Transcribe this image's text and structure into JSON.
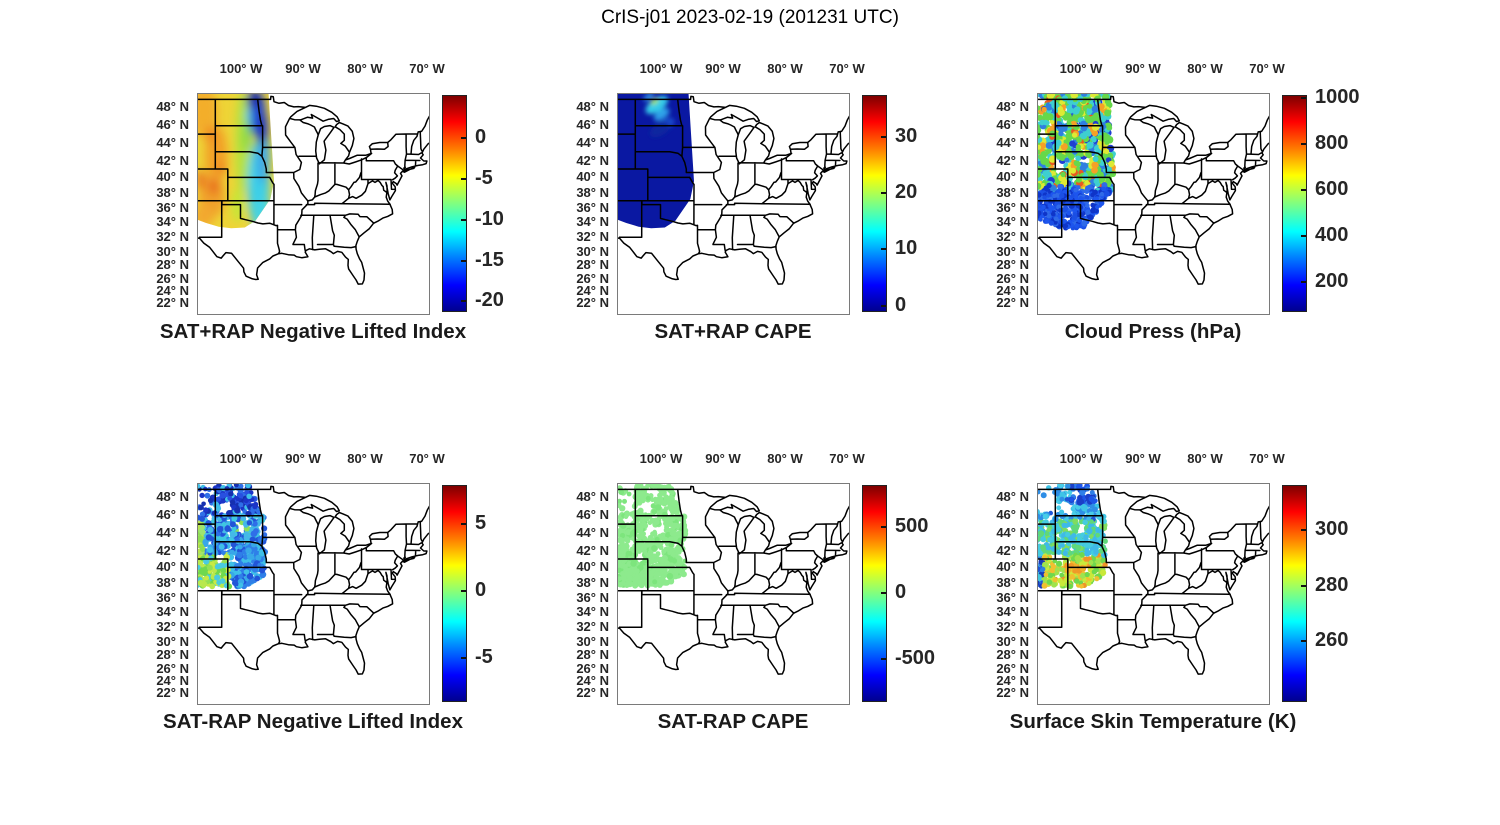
{
  "figure": {
    "title": "CrIS-j01 2023-02-19 (201231 UTC)",
    "background": "#ffffff"
  },
  "shared_axes": {
    "lon_tick_labels": [
      "100° W",
      "90° W",
      "80° W",
      "70° W"
    ],
    "lat_tick_labels": [
      "48° N",
      "46° N",
      "44° N",
      "42° N",
      "40° N",
      "38° N",
      "36° N",
      "34° N",
      "32° N",
      "30° N",
      "28° N",
      "26° N",
      "24° N",
      "22° N"
    ]
  },
  "colormap": {
    "name": "jet",
    "stops": [
      "#00008f",
      "#0000ff",
      "#0080ff",
      "#00ffff",
      "#80ff80",
      "#ffff00",
      "#ff8000",
      "#ff0000",
      "#7f0000"
    ]
  },
  "panels": [
    {
      "id": "sat-plus-rap-nli",
      "row": 1,
      "col": 1,
      "title": "SAT+RAP Negative Lifted Index",
      "colorbar": {
        "min": -21.2,
        "max": 5.2,
        "ticks": [
          {
            "label": "0",
            "value": 0
          },
          {
            "label": "-5",
            "value": -5
          },
          {
            "label": "-10",
            "value": -10
          },
          {
            "label": "-15",
            "value": -15
          },
          {
            "label": "-20",
            "value": -20
          }
        ]
      }
    },
    {
      "id": "sat-plus-rap-cape",
      "row": 1,
      "col": 2,
      "title": "SAT+RAP CAPE",
      "colorbar": {
        "min": -0.9,
        "max": 37.2,
        "ticks": [
          {
            "label": "30",
            "value": 30
          },
          {
            "label": "20",
            "value": 20
          },
          {
            "label": "10",
            "value": 10
          },
          {
            "label": "0",
            "value": 0
          }
        ]
      }
    },
    {
      "id": "cloud-press",
      "row": 1,
      "col": 3,
      "title": "Cloud Press (hPa)",
      "colorbar": {
        "min": 76,
        "max": 1008,
        "ticks": [
          {
            "label": "1000",
            "value": 1000
          },
          {
            "label": "800",
            "value": 800
          },
          {
            "label": "600",
            "value": 600
          },
          {
            "label": "400",
            "value": 400
          },
          {
            "label": "200",
            "value": 200
          }
        ]
      }
    },
    {
      "id": "sat-minus-rap-nli",
      "row": 2,
      "col": 1,
      "title": "SAT-RAP Negative Lifted Index",
      "colorbar": {
        "min": -8.2,
        "max": 7.8,
        "ticks": [
          {
            "label": "5",
            "value": 5
          },
          {
            "label": "0",
            "value": 0
          },
          {
            "label": "-5",
            "value": -5
          }
        ]
      }
    },
    {
      "id": "sat-minus-rap-cape",
      "row": 2,
      "col": 2,
      "title": "SAT-RAP CAPE",
      "colorbar": {
        "min": -815,
        "max": 808,
        "ticks": [
          {
            "label": "500",
            "value": 500
          },
          {
            "label": "0",
            "value": 0
          },
          {
            "label": "-500",
            "value": -500
          }
        ]
      }
    },
    {
      "id": "surface-skin-temp",
      "row": 2,
      "col": 3,
      "title": "Surface Skin Temperature (K)",
      "colorbar": {
        "min": 238.5,
        "max": 316,
        "ticks": [
          {
            "label": "300",
            "value": 300
          },
          {
            "label": "280",
            "value": 280
          },
          {
            "label": "260",
            "value": 260
          }
        ]
      }
    }
  ],
  "chart_data": [
    {
      "type": "heatmap",
      "panel": "SAT+RAP Negative Lifted Index",
      "map_extent": {
        "lon_w": [
          107,
          69.5
        ],
        "lat_n": [
          20,
          50
        ]
      },
      "lon_ticks_w": [
        100,
        90,
        80,
        70
      ],
      "lat_ticks_n": [
        48,
        46,
        44,
        42,
        40,
        38,
        36,
        34,
        32,
        30,
        28,
        26,
        24,
        22
      ],
      "data_swath": {
        "lon_w": [
          107,
          94.7
        ],
        "lat_n": [
          33.2,
          49.8
        ]
      },
      "colorbar_range": [
        -21,
        5
      ],
      "colorbar_ticks": [
        0,
        -5,
        -10,
        -15,
        -20
      ],
      "regions": [
        {
          "where": "lon 107-101W, lat 34-50N",
          "value": "-1 to -6 (yellow/orange, red streaks near 0)"
        },
        {
          "where": "lon 101-98W",
          "value": "-7 to -10 (green transition)"
        },
        {
          "where": "lon 98-95W, lat 34-44N",
          "value": "-10 to -14 (cyan / light blue)"
        },
        {
          "where": "lon 99.5-95.5W, lat 44-50N",
          "value": "-16 to -21 (dark blue)"
        }
      ]
    },
    {
      "type": "heatmap",
      "panel": "SAT+RAP CAPE",
      "map_extent": {
        "lon_w": [
          107,
          69.5
        ],
        "lat_n": [
          20,
          50
        ]
      },
      "data_swath": {
        "lon_w": [
          107,
          94.7
        ],
        "lat_n": [
          33.2,
          49.8
        ]
      },
      "colorbar_range": [
        -1,
        37
      ],
      "colorbar_ticks": [
        30,
        20,
        10,
        0
      ],
      "regions": [
        {
          "where": "most of swath",
          "value": "~0 (dark navy blue)"
        },
        {
          "where": "lon 102.5-98.5W, lat 46.3-49.7N",
          "value": "8-25 (cyan streaks with small yellow-green core ~22)"
        }
      ]
    },
    {
      "type": "scatter-map",
      "panel": "Cloud Press (hPa)",
      "map_extent": {
        "lon_w": [
          107,
          69.5
        ],
        "lat_n": [
          20,
          50
        ]
      },
      "data_swath": {
        "lon_w": [
          107,
          94.7
        ],
        "lat_n": [
          33.2,
          49.8
        ]
      },
      "colorbar_range": [
        75,
        1010
      ],
      "colorbar_ticks": [
        1000,
        800,
        600,
        400,
        200
      ],
      "regions": [
        {
          "where": "lat 38.5-50N",
          "value": "400-780 hPa mixed blobs (green/yellow/orange/cyan), white gaps"
        },
        {
          "where": "lat 33.3-38.5N",
          "value": "150-280 hPa (dense blue)"
        }
      ]
    },
    {
      "type": "scatter-map",
      "panel": "SAT-RAP Negative Lifted Index",
      "map_extent": {
        "lon_w": [
          107,
          69.5
        ],
        "lat_n": [
          20,
          50
        ]
      },
      "data_coverage": {
        "lon_w": [
          107,
          96
        ],
        "lat_n": [
          37.6,
          49.7
        ]
      },
      "colorbar_range": [
        -8,
        8
      ],
      "colorbar_ticks": [
        5,
        0,
        -5
      ],
      "regions": [
        {
          "where": "lat 46-50N, lon 104-96.5W",
          "value": "-4 to -7 (dark blue dots)"
        },
        {
          "where": "lat 42-46N",
          "value": "-2 to -4 (cyan/blue dots)"
        },
        {
          "where": "lat 37.6-41.5N, lon 107-102W",
          "value": "-1 to +1 (yellow-green/green)"
        },
        {
          "where": "lat 38-43N, lon 102-96W",
          "value": "-2 to -5 (blue/cyan)"
        }
      ]
    },
    {
      "type": "scatter-map",
      "panel": "SAT-RAP CAPE",
      "map_extent": {
        "lon_w": [
          107,
          69.5
        ],
        "lat_n": [
          20,
          50
        ]
      },
      "data_coverage": {
        "lon_w": [
          107,
          96
        ],
        "lat_n": [
          37.6,
          49.7
        ]
      },
      "colorbar_range": [
        -815,
        808
      ],
      "colorbar_ticks": [
        500,
        0,
        -500
      ],
      "regions": [
        {
          "where": "entire coverage",
          "value": "~0 (uniform light green dots)"
        }
      ]
    },
    {
      "type": "scatter-map",
      "panel": "Surface Skin Temperature (K)",
      "map_extent": {
        "lon_w": [
          107,
          69.5
        ],
        "lat_n": [
          20,
          50
        ]
      },
      "data_coverage": {
        "lon_w": [
          107,
          96
        ],
        "lat_n": [
          37.6,
          49.7
        ]
      },
      "colorbar_range": [
        238,
        316
      ],
      "colorbar_ticks": [
        300,
        280,
        260
      ],
      "regions": [
        {
          "where": "lat 46-50N",
          "value": "250-262 K (blue/cyan)"
        },
        {
          "where": "lat 41.5-46N",
          "value": "265-278 K (cyan/green)"
        },
        {
          "where": "lat 37.6-41.5N",
          "value": "278-292 K (green/yellow, orange streak ~40N 102-99W)"
        },
        {
          "where": "left edge lat 38-40.5N",
          "value": "244-256 K (dark blue cluster)"
        }
      ]
    }
  ]
}
